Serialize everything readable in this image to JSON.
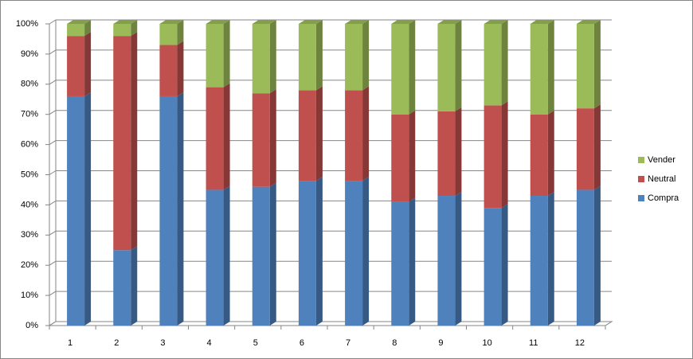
{
  "chart_data": {
    "type": "bar3d_stacked",
    "categories": [
      "1",
      "2",
      "3",
      "4",
      "5",
      "6",
      "7",
      "8",
      "9",
      "10",
      "11",
      "12"
    ],
    "series": [
      {
        "name": "Compra",
        "color": "#4f81bd",
        "values": [
          76,
          25,
          76,
          45,
          46,
          48,
          48,
          41,
          43,
          39,
          43,
          45
        ]
      },
      {
        "name": "Neutral",
        "color": "#c0504d",
        "values": [
          20,
          71,
          17,
          34,
          31,
          30,
          30,
          29,
          28,
          34,
          27,
          27
        ]
      },
      {
        "name": "Vender",
        "color": "#9bbb59",
        "values": [
          4,
          4,
          7,
          21,
          23,
          22,
          22,
          30,
          29,
          27,
          30,
          28
        ]
      }
    ],
    "ylim": [
      0,
      100
    ],
    "yticks": [
      {
        "value": 0,
        "label": "0%"
      },
      {
        "value": 10,
        "label": "10%"
      },
      {
        "value": 20,
        "label": "20%"
      },
      {
        "value": 30,
        "label": "30%"
      },
      {
        "value": 40,
        "label": "40%"
      },
      {
        "value": 50,
        "label": "50%"
      },
      {
        "value": 60,
        "label": "60%"
      },
      {
        "value": 70,
        "label": "70%"
      },
      {
        "value": 80,
        "label": "80%"
      },
      {
        "value": 90,
        "label": "90%"
      },
      {
        "value": 100,
        "label": "100%"
      }
    ],
    "grid": true,
    "legend": "right"
  }
}
